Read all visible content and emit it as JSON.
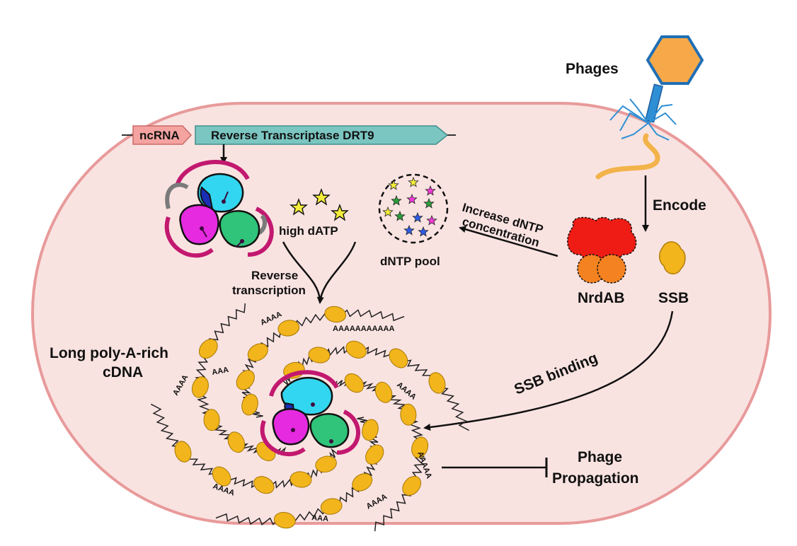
{
  "title": "",
  "gene_cassette": {
    "ncrna": "ncRNA",
    "rt": "Reverse Transcriptase DRT9"
  },
  "labels": {
    "phages": "Phages",
    "encode": "Encode",
    "high_datp": "high dATP",
    "dntp_pool": "dNTP pool",
    "increase_line1": "Increase dNTP",
    "increase_line2": "concentration",
    "nrdab": "NrdAB",
    "ssb": "SSB",
    "rt_line1": "Reverse",
    "rt_line2": "transcription",
    "cdna_line1": "Long poly-A-rich",
    "cdna_line2": "cDNA",
    "ssb_binding": "SSB binding",
    "phage_line1": "Phage",
    "phage_line2": "Propagation"
  },
  "polyA_tags": [
    "AAAA",
    "AAAAAAAAAAA",
    "AAA",
    "AAAA",
    "AAAAA",
    "AAAA",
    "AAA",
    "AAAA",
    "AAAA"
  ],
  "colors": {
    "cell_fill": "#f9e3e1",
    "cell_stroke": "#e89a9a",
    "ncrna": "#f4a3a0",
    "rt_gene": "#7cc6c2",
    "capsid": "#f7a94a",
    "capsid_stroke": "#1f6fb5",
    "tail_fiber": "#2f8fd4",
    "ssb": "#f2b51c",
    "nrda": "#ee1c14",
    "nrdb": "#f58220",
    "rt_cyan": "#32d6f0",
    "rt_magenta": "#e52adf",
    "rt_green": "#2fc47a",
    "rt_loop": "#c2186f"
  },
  "star_colors": [
    "#f4ec3a",
    "#f43ad9",
    "#2e9e3a",
    "#2f5de8"
  ]
}
